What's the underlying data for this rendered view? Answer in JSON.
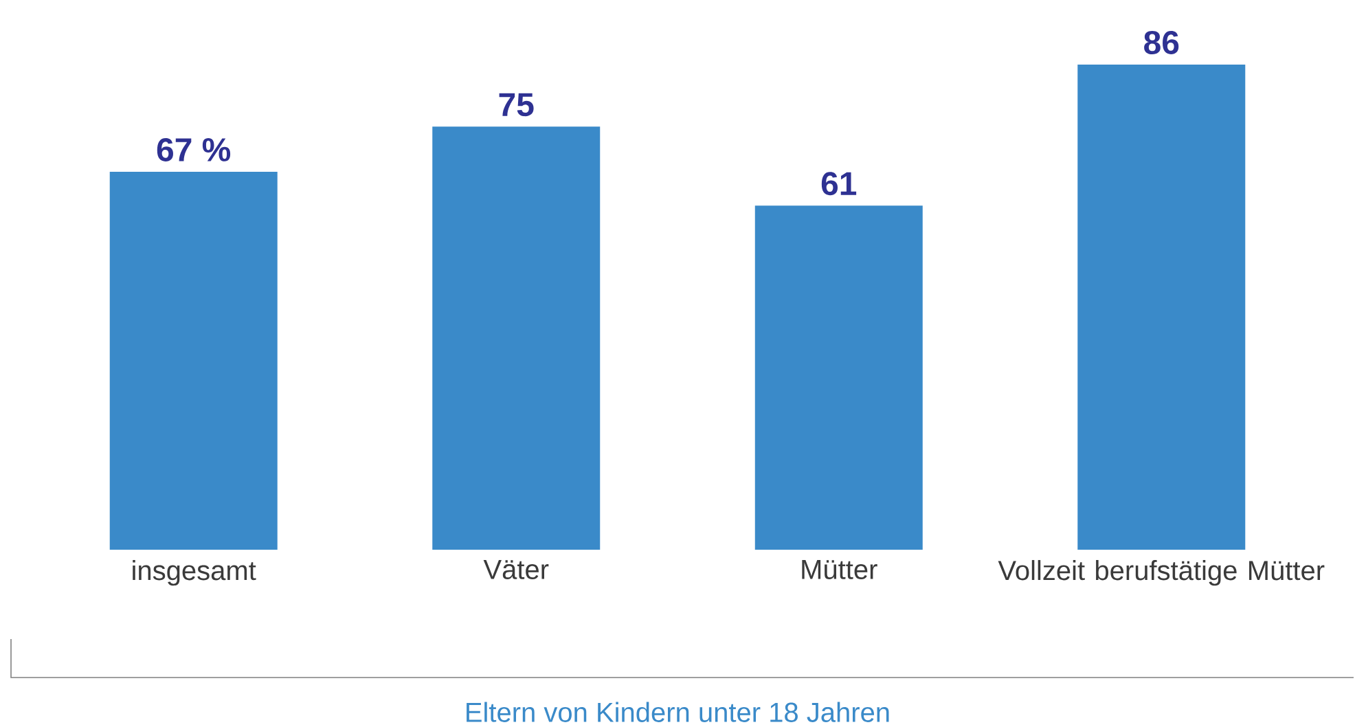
{
  "chart_data": {
    "type": "bar",
    "categories": [
      "insgesamt",
      "Väter",
      "Mütter",
      "Vollzeit berufstätige Mütter"
    ],
    "values": [
      67,
      75,
      61,
      86
    ],
    "value_labels": [
      "67 %",
      "75",
      "61",
      "86"
    ],
    "color": "#3a8ac9",
    "xlabel": "Eltern von Kindern unter 18 Jahren"
  }
}
